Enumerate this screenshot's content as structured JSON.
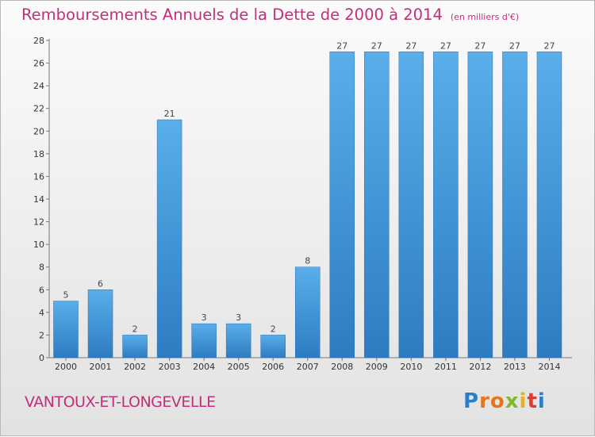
{
  "chart_data": {
    "type": "bar",
    "title": "Remboursements Annuels de la Dette de 2000 à 2014",
    "subtitle": "(en milliers d'€)",
    "categories": [
      "2000",
      "2001",
      "2002",
      "2003",
      "2004",
      "2005",
      "2006",
      "2007",
      "2008",
      "2009",
      "2010",
      "2011",
      "2012",
      "2013",
      "2014"
    ],
    "values": [
      5,
      6,
      2,
      21,
      3,
      3,
      2,
      8,
      27,
      27,
      27,
      27,
      27,
      27,
      27
    ],
    "xlabel": "",
    "ylabel": "",
    "ylim": [
      0,
      28
    ],
    "yticks": [
      0,
      2,
      4,
      6,
      8,
      10,
      12,
      14,
      16,
      18,
      20,
      22,
      24,
      26,
      28
    ],
    "grid": false,
    "bar_color": "#3a8fd6",
    "title_color": "#c0307a"
  },
  "footer": {
    "commune": "VANTOUX-ET-LONGEVELLE"
  },
  "logo": {
    "letters": [
      "P",
      "r",
      "o",
      "x",
      "i",
      "t",
      "i"
    ]
  }
}
